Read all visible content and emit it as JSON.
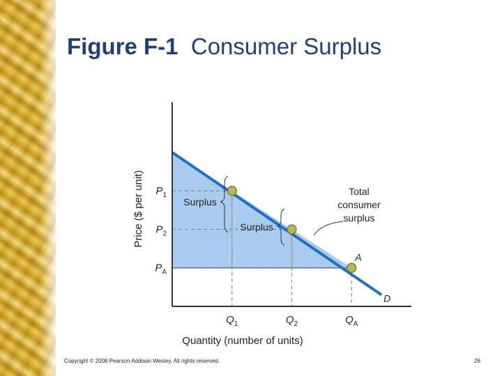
{
  "slide": {
    "title_bold": "Figure F-1",
    "title_rest": "Consumer Surplus",
    "copyright": "Copyright © 2008 Pearson Addison Wesley. All rights reserved.",
    "page_number": "26"
  },
  "chart_data": {
    "type": "line",
    "title": "Consumer Surplus",
    "xlabel": "Quantity (number of units)",
    "ylabel": "Price ($ per unit)",
    "x_ticks": [
      {
        "base": "Q",
        "sub": "1",
        "value": 1
      },
      {
        "base": "Q",
        "sub": "2",
        "value": 2
      },
      {
        "base": "Q",
        "sub": "A",
        "value": 3
      }
    ],
    "y_ticks": [
      {
        "base": "P",
        "sub": "1",
        "value": 3
      },
      {
        "base": "P",
        "sub": "2",
        "value": 2
      },
      {
        "base": "P",
        "sub": "A",
        "value": 1
      }
    ],
    "xlim": [
      0,
      4.0
    ],
    "ylim": [
      0,
      5.3
    ],
    "series": [
      {
        "name": "D",
        "x": [
          0,
          3.5
        ],
        "y": [
          4.0,
          0.3
        ]
      }
    ],
    "points": [
      {
        "x": 1,
        "y": 3,
        "label": ""
      },
      {
        "x": 2,
        "y": 2,
        "label": ""
      },
      {
        "x": 3,
        "y": 1,
        "label": "A"
      }
    ],
    "annotations": {
      "surplus_1": "Surplus",
      "surplus_2": "Surplus",
      "total_line1": "Total",
      "total_line2": "consumer",
      "total_line3": "surplus"
    },
    "colors": {
      "demand": "#1f6fc4",
      "fill": "#a9cbef",
      "point": "#b6b85a"
    }
  }
}
